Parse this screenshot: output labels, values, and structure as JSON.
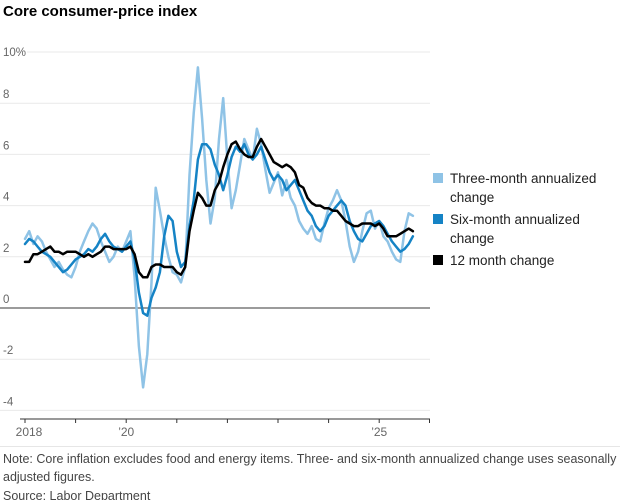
{
  "title": "Core consumer-price index",
  "chart_data": {
    "type": "line",
    "title": "Core consumer-price index",
    "y_unit": "%",
    "ylim": [
      -4,
      10
    ],
    "grid": "horizontal",
    "zero_line": 0,
    "yticks": [
      {
        "v": 10,
        "label": "10%"
      },
      {
        "v": 8,
        "label": "8"
      },
      {
        "v": 6,
        "label": "6"
      },
      {
        "v": 4,
        "label": "4"
      },
      {
        "v": 2,
        "label": "2"
      },
      {
        "v": 0,
        "label": "0"
      },
      {
        "v": -2,
        "label": "-2"
      },
      {
        "v": -4,
        "label": "-4"
      }
    ],
    "xticks": [
      {
        "year": 2018,
        "label": "2018"
      },
      {
        "year": 2019,
        "label": ""
      },
      {
        "year": 2020,
        "label": "’20"
      },
      {
        "year": 2021,
        "label": ""
      },
      {
        "year": 2022,
        "label": ""
      },
      {
        "year": 2023,
        "label": ""
      },
      {
        "year": 2024,
        "label": ""
      },
      {
        "year": 2025,
        "label": "’25"
      },
      {
        "year": 2026,
        "label": ""
      }
    ],
    "x_start": "2018-01",
    "x_end": "2025-09",
    "x_step_months": 1,
    "legend_position": "right",
    "series": [
      {
        "name": "Three-month annualized change",
        "color": "#8FC3E6",
        "values": [
          2.7,
          3.0,
          2.5,
          2.8,
          2.6,
          2.2,
          1.9,
          1.6,
          1.8,
          1.5,
          1.3,
          1.2,
          1.6,
          2.2,
          2.6,
          3.0,
          3.3,
          3.1,
          2.6,
          2.2,
          1.8,
          2.0,
          2.4,
          2.2,
          2.6,
          3.0,
          1.2,
          -1.5,
          -3.1,
          -1.8,
          1.0,
          4.7,
          3.8,
          2.8,
          2.0,
          1.4,
          1.3,
          1.0,
          1.6,
          5.2,
          7.6,
          9.4,
          7.4,
          5.0,
          3.3,
          4.3,
          6.6,
          8.2,
          5.8,
          3.9,
          4.6,
          5.6,
          6.6,
          6.2,
          5.8,
          7.0,
          6.4,
          5.4,
          4.5,
          4.9,
          5.3,
          4.4,
          5.0,
          4.3,
          4.0,
          3.4,
          3.1,
          2.9,
          3.2,
          2.7,
          2.6,
          3.3,
          3.9,
          4.2,
          4.6,
          4.2,
          3.4,
          2.4,
          1.8,
          2.2,
          3.0,
          3.7,
          3.8,
          3.1,
          3.4,
          2.8,
          2.6,
          2.2,
          1.9,
          1.8,
          3.0,
          3.7,
          3.6
        ]
      },
      {
        "name": "Six-month annualized change",
        "color": "#1583C5",
        "values": [
          2.5,
          2.7,
          2.6,
          2.4,
          2.2,
          2.1,
          2.0,
          1.8,
          1.6,
          1.4,
          1.5,
          1.7,
          1.9,
          2.0,
          2.1,
          2.3,
          2.2,
          2.4,
          2.7,
          2.9,
          2.6,
          2.4,
          2.3,
          2.2,
          2.4,
          2.6,
          1.9,
          0.6,
          -0.2,
          -0.3,
          0.4,
          0.8,
          1.4,
          2.8,
          3.6,
          3.4,
          2.2,
          1.6,
          1.8,
          3.2,
          4.2,
          5.8,
          6.4,
          6.4,
          6.2,
          5.6,
          5.2,
          4.6,
          5.2,
          5.9,
          6.3,
          6.1,
          6.4,
          6.0,
          5.8,
          6.0,
          6.3,
          5.8,
          5.3,
          5.0,
          5.2,
          5.0,
          4.6,
          4.8,
          5.0,
          4.6,
          4.2,
          3.8,
          3.6,
          3.2,
          3.0,
          3.2,
          3.6,
          3.8,
          4.0,
          4.2,
          4.0,
          3.4,
          3.0,
          2.7,
          2.6,
          2.9,
          3.2,
          3.3,
          3.4,
          3.2,
          2.9,
          2.6,
          2.4,
          2.2,
          2.3,
          2.5,
          2.8
        ]
      },
      {
        "name": "12 month change",
        "color": "#000000",
        "values": [
          1.8,
          1.8,
          2.1,
          2.1,
          2.2,
          2.3,
          2.4,
          2.2,
          2.2,
          2.1,
          2.2,
          2.2,
          2.2,
          2.1,
          2.0,
          2.1,
          2.0,
          2.1,
          2.2,
          2.4,
          2.4,
          2.3,
          2.3,
          2.3,
          2.3,
          2.4,
          2.1,
          1.4,
          1.2,
          1.2,
          1.6,
          1.7,
          1.7,
          1.6,
          1.6,
          1.6,
          1.4,
          1.3,
          1.6,
          3.0,
          3.8,
          4.5,
          4.3,
          4.0,
          4.0,
          4.6,
          4.9,
          5.5,
          6.0,
          6.4,
          6.5,
          6.2,
          6.0,
          5.9,
          5.9,
          6.3,
          6.6,
          6.3,
          6.0,
          5.7,
          5.6,
          5.5,
          5.6,
          5.5,
          5.3,
          4.8,
          4.7,
          4.3,
          4.1,
          4.0,
          4.0,
          3.9,
          3.9,
          3.8,
          3.8,
          3.6,
          3.4,
          3.3,
          3.2,
          3.2,
          3.3,
          3.3,
          3.3,
          3.2,
          3.3,
          3.1,
          2.8,
          2.8,
          2.8,
          2.9,
          3.0,
          3.1,
          3.0
        ]
      }
    ]
  },
  "legend": {
    "items": [
      {
        "label": "Three-month annualized change",
        "color": "#8FC3E6"
      },
      {
        "label": "Six-month annualized change",
        "color": "#1583C5"
      },
      {
        "label": "12 month change",
        "color": "#000000"
      }
    ]
  },
  "footer": {
    "note": "Note: Core inflation excludes food and energy items. Three- and six-month annualized change uses seasonally adjusted figures.",
    "source": "Source: Labor Department"
  }
}
